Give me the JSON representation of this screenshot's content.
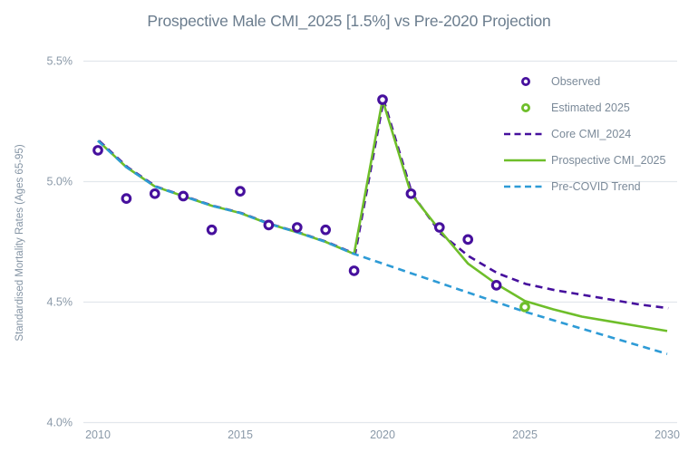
{
  "chart_data": {
    "type": "line",
    "title": "Prospective Male CMI_2025 [1.5%] vs Pre-2020 Projection",
    "xlabel": "",
    "ylabel": "Standardised Mortality Rates (Ages 65-95)",
    "xlim": [
      2010,
      2030
    ],
    "ylim": [
      4.0,
      5.5
    ],
    "grid": "horizontal-only",
    "legend_position": "upper-right",
    "x_ticks": [
      {
        "v": 2010,
        "label": "2010"
      },
      {
        "v": 2015,
        "label": "2015"
      },
      {
        "v": 2020,
        "label": "2020"
      },
      {
        "v": 2025,
        "label": "2025"
      },
      {
        "v": 2030,
        "label": "2030"
      }
    ],
    "y_ticks": [
      {
        "v": 4.0,
        "label": "4.0%"
      },
      {
        "v": 4.5,
        "label": "4.5%"
      },
      {
        "v": 5.0,
        "label": "5.0%"
      },
      {
        "v": 5.5,
        "label": "5.5%"
      }
    ],
    "series": [
      {
        "name": "Observed",
        "type": "scatter",
        "marker": "open-circle",
        "color": "#46109d",
        "x": [
          2010,
          2011,
          2012,
          2013,
          2014,
          2015,
          2016,
          2017,
          2018,
          2019,
          2020,
          2021,
          2022,
          2023,
          2024
        ],
        "y": [
          5.13,
          4.93,
          4.95,
          4.94,
          4.8,
          4.96,
          4.82,
          4.81,
          4.8,
          4.63,
          5.34,
          4.95,
          4.81,
          4.76,
          4.57
        ]
      },
      {
        "name": "Estimated 2025",
        "type": "scatter",
        "marker": "open-circle",
        "color": "#6ebe2a",
        "x": [
          2025
        ],
        "y": [
          4.48
        ]
      },
      {
        "name": "Core CMI_2024",
        "type": "line",
        "style": "dashed",
        "color": "#46109d",
        "x": [
          2010,
          2011,
          2012,
          2013,
          2014,
          2015,
          2016,
          2017,
          2018,
          2019,
          2020,
          2021,
          2022,
          2023,
          2024,
          2025,
          2026,
          2027,
          2028,
          2029,
          2030
        ],
        "y": [
          5.17,
          5.06,
          4.98,
          4.94,
          4.9,
          4.87,
          4.825,
          4.79,
          4.75,
          4.7,
          5.34,
          4.95,
          4.785,
          4.69,
          4.62,
          4.575,
          4.55,
          4.53,
          4.51,
          4.49,
          4.475
        ]
      },
      {
        "name": "Prospective CMI_2025",
        "type": "line",
        "style": "solid",
        "color": "#6ebe2a",
        "x": [
          2010,
          2011,
          2012,
          2013,
          2014,
          2015,
          2016,
          2017,
          2018,
          2019,
          2020,
          2021,
          2022,
          2023,
          2024,
          2025,
          2026,
          2027,
          2028,
          2029,
          2030
        ],
        "y": [
          5.17,
          5.06,
          4.98,
          4.94,
          4.9,
          4.87,
          4.825,
          4.79,
          4.75,
          4.7,
          5.34,
          4.95,
          4.8,
          4.66,
          4.575,
          4.505,
          4.47,
          4.44,
          4.42,
          4.4,
          4.38
        ]
      },
      {
        "name": "Pre-COVID Trend",
        "type": "line",
        "style": "dashed",
        "color": "#2e9bd6",
        "x": [
          2010,
          2011,
          2012,
          2013,
          2014,
          2015,
          2016,
          2017,
          2018,
          2019,
          2020,
          2021,
          2022,
          2023,
          2024,
          2025,
          2026,
          2027,
          2028,
          2029,
          2030
        ],
        "y": [
          5.17,
          5.06,
          4.98,
          4.94,
          4.9,
          4.87,
          4.825,
          4.79,
          4.75,
          4.7,
          4.66,
          4.62,
          4.58,
          4.54,
          4.5,
          4.46,
          4.425,
          4.39,
          4.355,
          4.32,
          4.285
        ]
      }
    ],
    "colors": {
      "grid": "#e2e7ec",
      "title_text": "#6b7d8e",
      "tick_text": "#8a99a8",
      "legend_text": "#7b8a99",
      "axis_label_text": "#8494a4",
      "background": "#ffffff"
    }
  }
}
